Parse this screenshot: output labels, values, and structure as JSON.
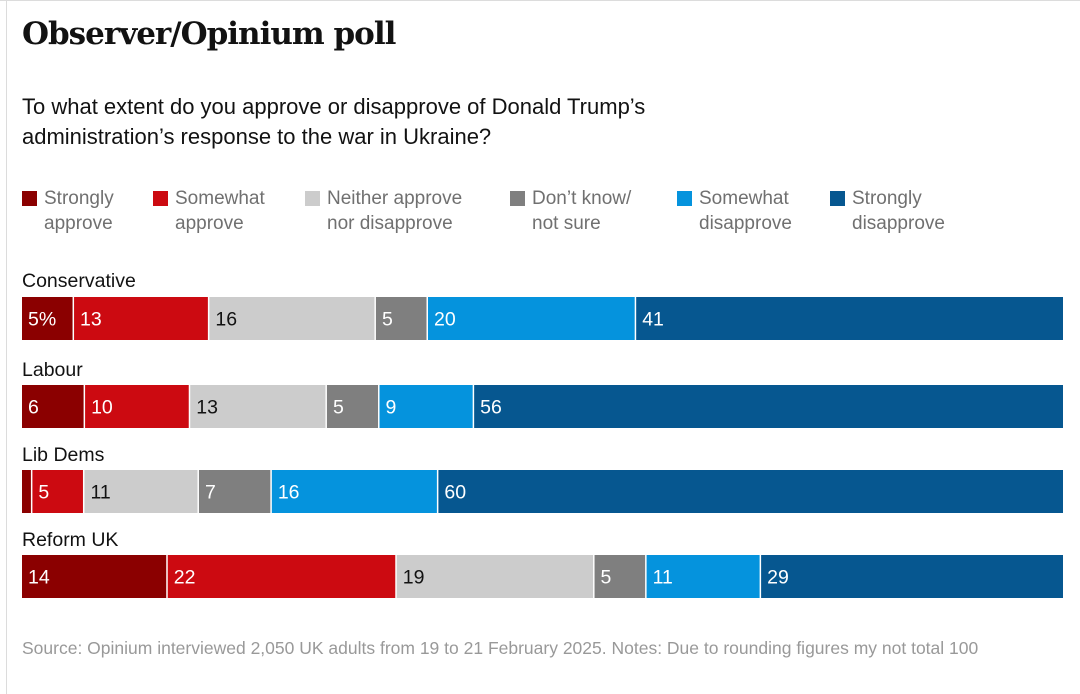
{
  "title": "Observer/Opinium poll",
  "subtitle": "To what extent do you approve or disapprove of Donald Trump’s administration’s response to the war in Ukraine?",
  "source": "Source: Opinium interviewed 2,050 UK adults from 19 to 21 February 2025. Notes: Due to rounding figures my not total 100",
  "legend": [
    {
      "line1": "Strongly",
      "line2": "approve",
      "color": "#8b0000"
    },
    {
      "line1": "Somewhat",
      "line2": "approve",
      "color": "#cc0a11"
    },
    {
      "line1": "Neither approve",
      "line2": "nor disapprove",
      "color": "#cccccc"
    },
    {
      "line1": "Don’t know/",
      "line2": "not sure",
      "color": "#7f7f7f"
    },
    {
      "line1": "Somewhat",
      "line2": "disapprove",
      "color": "#0593dd"
    },
    {
      "line1": "Strongly",
      "line2": "disapprove",
      "color": "#065790"
    }
  ],
  "chart_data": {
    "type": "bar",
    "orientation": "horizontal",
    "stacked": true,
    "title": "Observer/Opinium poll",
    "categories": [
      "Conservative",
      "Labour",
      "Lib Dems",
      "Reform UK"
    ],
    "series": [
      {
        "name": "Strongly approve",
        "color": "#8b0000",
        "values": [
          5,
          6,
          1,
          14
        ],
        "labels": [
          "5%",
          "6",
          "",
          "14"
        ]
      },
      {
        "name": "Somewhat approve",
        "color": "#cc0a11",
        "values": [
          13,
          10,
          5,
          22
        ],
        "labels": [
          "13",
          "10",
          "5",
          "22"
        ]
      },
      {
        "name": "Neither approve nor disapprove",
        "color": "#cccccc",
        "values": [
          16,
          13,
          11,
          19
        ],
        "labels": [
          "16",
          "13",
          "11",
          "19"
        ]
      },
      {
        "name": "Don’t know/not sure",
        "color": "#7f7f7f",
        "values": [
          5,
          5,
          7,
          5
        ],
        "labels": [
          "5",
          "5",
          "7",
          "5"
        ]
      },
      {
        "name": "Somewhat disapprove",
        "color": "#0593dd",
        "values": [
          20,
          9,
          16,
          11
        ],
        "labels": [
          "20",
          "9",
          "16",
          "11"
        ]
      },
      {
        "name": "Strongly disapprove",
        "color": "#065790",
        "values": [
          41,
          56,
          60,
          29
        ],
        "labels": [
          "41",
          "56",
          "60",
          "29"
        ]
      }
    ],
    "label_colors": [
      "#ffffff",
      "#ffffff",
      "#121212",
      "#ffffff",
      "#ffffff",
      "#ffffff"
    ],
    "xlim": [
      0,
      100
    ]
  }
}
